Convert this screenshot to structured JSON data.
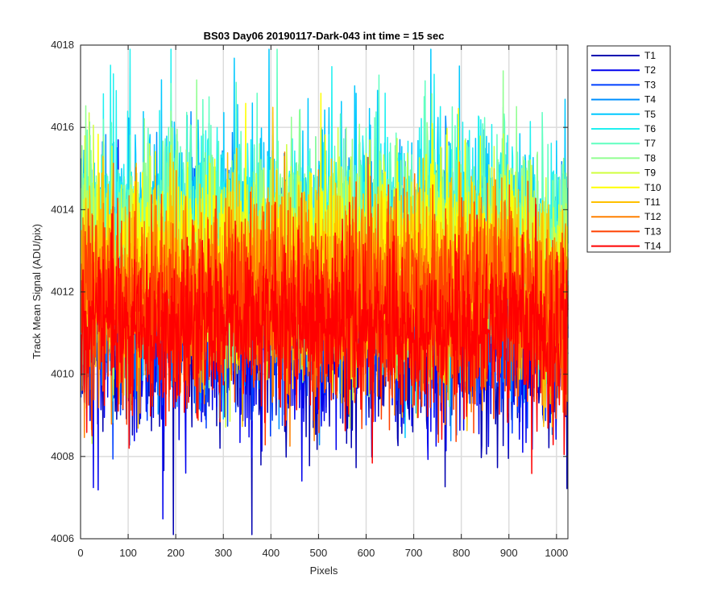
{
  "chart_data": {
    "type": "line",
    "title": "BS03 Day06 20190117-Dark-043 int time = 15 sec",
    "xlabel": "Pixels",
    "ylabel": "Track Mean Signal (ADU/pix)",
    "xlim": [
      0,
      1024
    ],
    "ylim": [
      4006,
      4018
    ],
    "xticks": [
      "0",
      "100",
      "200",
      "300",
      "400",
      "500",
      "600",
      "700",
      "800",
      "900",
      "1000"
    ],
    "yticks": [
      "4006",
      "4008",
      "4010",
      "4012",
      "4014",
      "4016",
      "4018"
    ],
    "grid": true,
    "legend_position": "outside-top-right",
    "series": [
      {
        "name": "T1",
        "color": "#0000b0",
        "mean": 4011.0,
        "spread": 1.3
      },
      {
        "name": "T2",
        "color": "#0000ee",
        "mean": 4011.2,
        "spread": 1.3
      },
      {
        "name": "T3",
        "color": "#0040ff",
        "mean": 4011.6,
        "spread": 1.3
      },
      {
        "name": "T4",
        "color": "#0090ff",
        "mean": 4012.6,
        "spread": 1.4
      },
      {
        "name": "T5",
        "color": "#00c8ff",
        "mean": 4013.2,
        "spread": 1.4
      },
      {
        "name": "T6",
        "color": "#20f0f0",
        "mean": 4013.4,
        "spread": 1.3
      },
      {
        "name": "T7",
        "color": "#60ffc0",
        "mean": 4013.2,
        "spread": 1.3
      },
      {
        "name": "T8",
        "color": "#90ff90",
        "mean": 4013.0,
        "spread": 1.3
      },
      {
        "name": "T9",
        "color": "#d0ff40",
        "mean": 4012.8,
        "spread": 1.2
      },
      {
        "name": "T10",
        "color": "#ffff00",
        "mean": 4012.6,
        "spread": 1.2
      },
      {
        "name": "T11",
        "color": "#ffc000",
        "mean": 4012.3,
        "spread": 1.2
      },
      {
        "name": "T12",
        "color": "#ff8000",
        "mean": 4012.0,
        "spread": 1.2
      },
      {
        "name": "T13",
        "color": "#ff4000",
        "mean": 4011.6,
        "spread": 1.2
      },
      {
        "name": "T14",
        "color": "#ff0000",
        "mean": 4011.1,
        "spread": 1.0
      }
    ]
  }
}
